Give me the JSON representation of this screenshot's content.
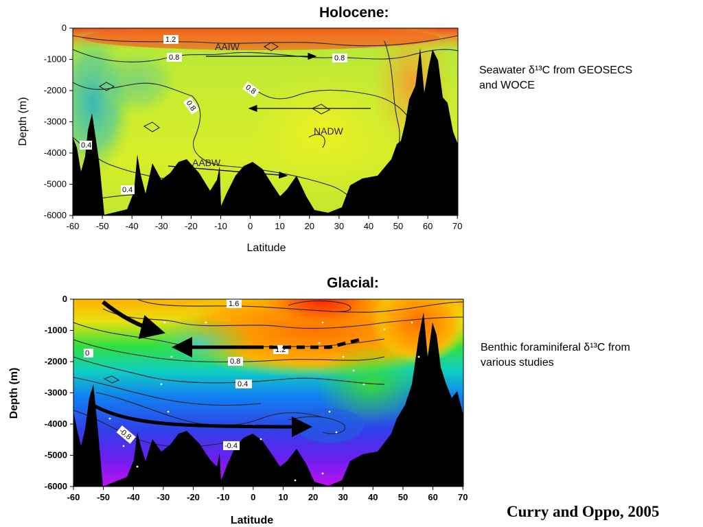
{
  "holocene": {
    "title": "Holocene:",
    "caption_line1": "Seawater δ¹³C from GEOSECS",
    "caption_line2": "and WOCE"
  },
  "glacial": {
    "title": "Glacial:",
    "caption_line1": "Benthic foraminiferal δ¹³C from",
    "caption_line2": "various studies"
  },
  "credit": "Curry and Oppo, 2005",
  "chart_data": [
    {
      "type": "heatmap",
      "title": "Holocene:",
      "xlabel": "Latitude",
      "ylabel": "Depth (m)",
      "xlim": [
        -60,
        75
      ],
      "ylim": [
        -6000,
        0
      ],
      "x_ticks": [
        "-60",
        "-50",
        "-40",
        "-30",
        "-20",
        "-10",
        "0",
        "10",
        "20",
        "30",
        "40",
        "50",
        "60",
        "70"
      ],
      "y_ticks": [
        "0",
        "-1000",
        "-2000",
        "-3000",
        "-4000",
        "-5000",
        "-6000"
      ],
      "contour_labels": [
        "1.2",
        "0.8",
        "0.8",
        "0.8",
        "0.8",
        "0.4",
        "0.4"
      ],
      "water_masses": [
        "AAIW",
        "NADW",
        "AABW"
      ],
      "colors": {
        "high": "#e8501e",
        "mid": "#9ee03a",
        "low": "#3ab4c8",
        "bathymetry": "#000000"
      }
    },
    {
      "type": "heatmap",
      "title": "Glacial:",
      "xlabel": "Latitude",
      "ylabel": "Depth (m)",
      "xlim": [
        -60,
        75
      ],
      "ylim": [
        -6000,
        0
      ],
      "x_ticks": [
        "-60",
        "-50",
        "-40",
        "-30",
        "-20",
        "-10",
        "0",
        "10",
        "20",
        "30",
        "40",
        "50",
        "60",
        "70"
      ],
      "y_ticks": [
        "0",
        "-1000",
        "-2000",
        "-3000",
        "-4000",
        "-5000",
        "-6000"
      ],
      "contour_labels": [
        "1.6",
        "1.2",
        "0.8",
        "0.4",
        "0",
        "-0.4",
        "-0.8"
      ],
      "colors": {
        "high": "#ff5a00",
        "mid": "#30e040",
        "low": "#8a10ff",
        "bathymetry": "#000000"
      }
    }
  ]
}
